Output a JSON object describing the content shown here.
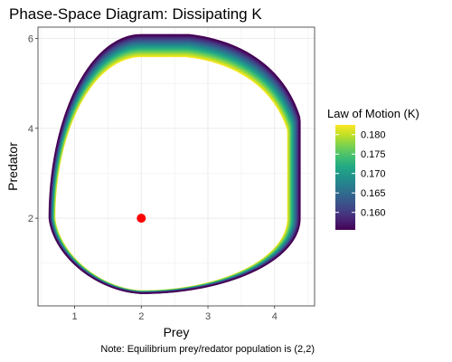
{
  "chart_data": {
    "type": "line",
    "title": "Phase-Space Diagram: Dissipating K",
    "xlabel": "Prey",
    "ylabel": "Predator",
    "caption": "Note: Equilibrium prey/redator population is (2,2)",
    "xlim": [
      0.45,
      4.6
    ],
    "ylim": [
      0.05,
      6.25
    ],
    "x_ticks": [
      1,
      2,
      3,
      4
    ],
    "y_ticks": [
      2,
      4,
      6
    ],
    "grid": true,
    "legend_position": "right",
    "legend": {
      "title": "Law of Motion (K)",
      "range": [
        0.1555,
        0.1825
      ],
      "ticks": [
        0.16,
        0.165,
        0.17,
        0.175,
        0.18
      ],
      "tick_labels": [
        "0.160",
        "0.165",
        "0.170",
        "0.175",
        "0.180"
      ],
      "colormap": "viridis"
    },
    "orbits": {
      "K_range": [
        0.1555,
        0.1825
      ],
      "count": 28,
      "equilibrium": [
        2,
        2
      ],
      "inner_bounds": {
        "prey": [
          0.7,
          4.2
        ],
        "predator": [
          0.38,
          5.6
        ]
      },
      "outer_bounds": {
        "prey": [
          0.62,
          4.38
        ],
        "predator": [
          0.33,
          6.08
        ]
      }
    },
    "equilibrium_point": {
      "x": 2,
      "y": 2,
      "color": "#ff0000"
    }
  }
}
